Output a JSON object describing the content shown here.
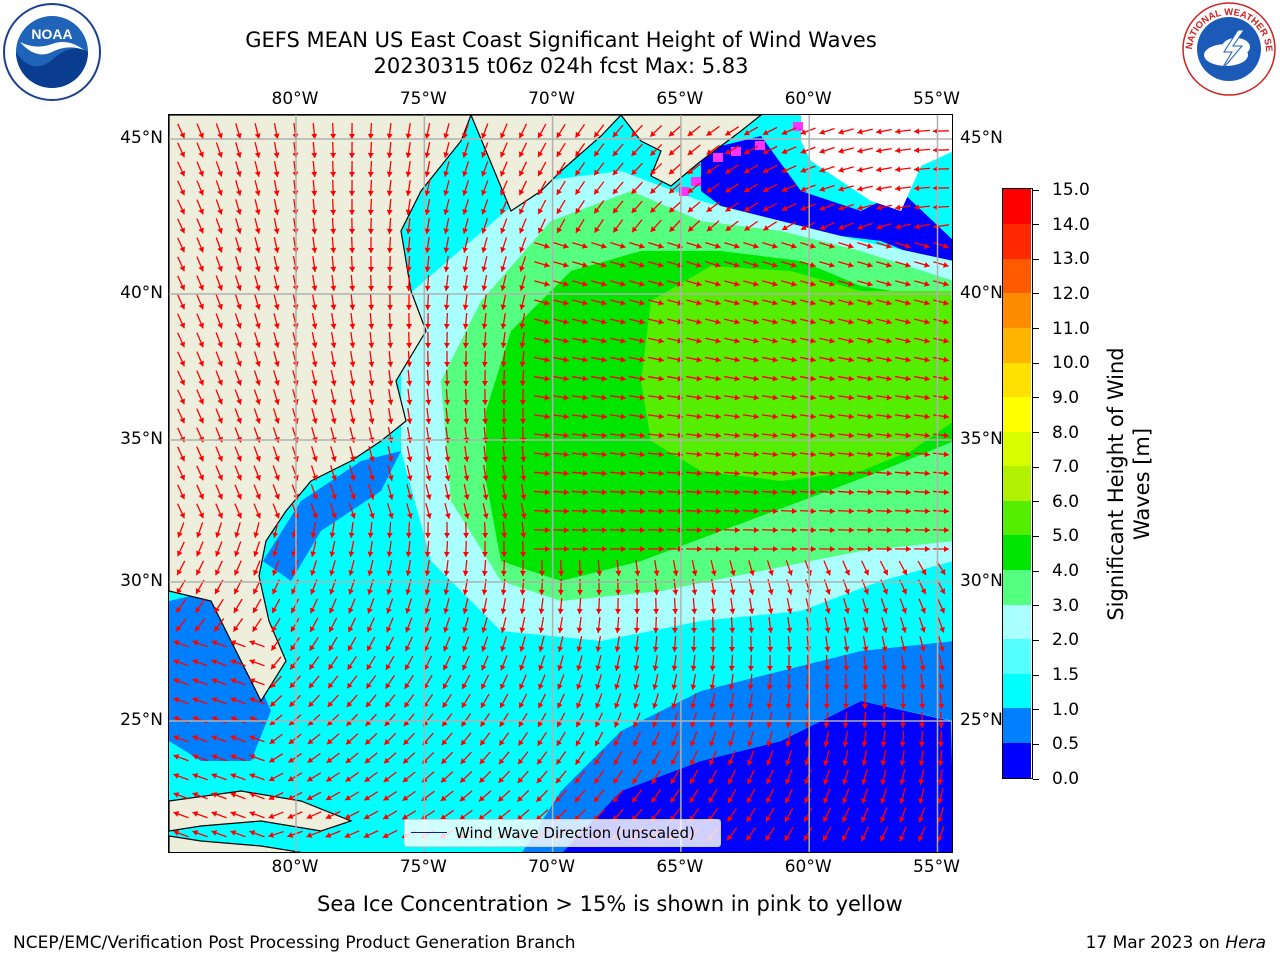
{
  "title": {
    "line1": "GEFS MEAN US East Coast Significant Height of Wind Waves",
    "line2": "20230315 t06z 024h fcst    Max: 5.83"
  },
  "logos": {
    "left": {
      "name": "noaa-logo",
      "text": "NOAA",
      "ring": "NATIONAL OCEANIC AND ATMOSPHERIC ADMINISTRATION · U.S. DEPARTMENT OF COMMERCE"
    },
    "right": {
      "name": "nws-logo",
      "ring": "NATIONAL WEATHER SERVICE"
    }
  },
  "map": {
    "lon_labels": [
      "80°W",
      "75°W",
      "70°W",
      "65°W",
      "60°W",
      "55°W"
    ],
    "lat_labels": [
      "45°N",
      "40°N",
      "35°N",
      "30°N",
      "25°N"
    ],
    "extent": {
      "lon": [
        -85,
        -54.6
      ],
      "lat": [
        20.5,
        46
      ]
    },
    "legend": {
      "label": "Wind Wave Direction (unscaled)",
      "color": "#ff0000"
    },
    "land_color": "#eeeedd",
    "grid_color": "#b0b0b0"
  },
  "colorbar": {
    "label": "Significant Height of Wind Waves [m]",
    "ticks": [
      "0.0",
      "0.5",
      "1.0",
      "1.5",
      "2.0",
      "3.0",
      "4.0",
      "5.0",
      "6.0",
      "7.0",
      "8.0",
      "9.0",
      "10.0",
      "11.0",
      "12.0",
      "13.0",
      "14.0",
      "15.0"
    ],
    "colors": [
      "#0000ff",
      "#0080ff",
      "#00ffff",
      "#55ffff",
      "#aaffff",
      "#55ff7f",
      "#00e600",
      "#55ee00",
      "#b0f000",
      "#d8ff00",
      "#ffff00",
      "#ffe000",
      "#ffb400",
      "#ff8c00",
      "#ff5a00",
      "#ff2800",
      "#ff0000"
    ]
  },
  "subtitle": "Sea Ice Concentration > 15% is shown in pink to yellow",
  "footer": {
    "left": "NCEP/EMC/Verification Post Processing Product Generation Branch",
    "right_date": "17 Mar 2023 on ",
    "right_machine": "Hera"
  }
}
